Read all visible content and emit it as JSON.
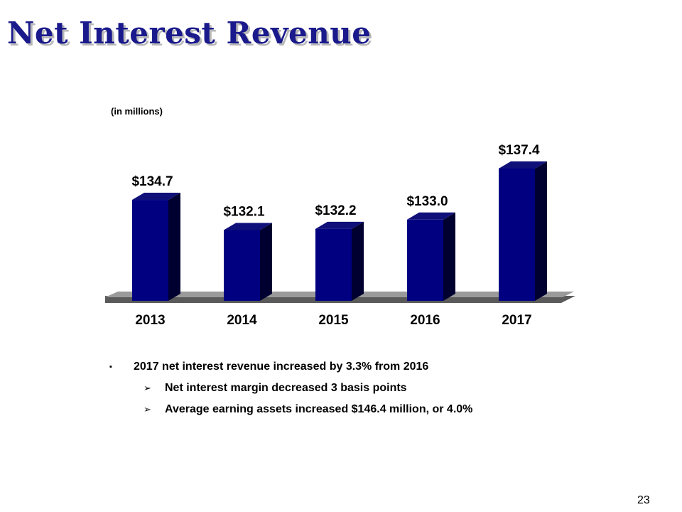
{
  "page": {
    "title": "Net Interest Revenue",
    "page_number": "23"
  },
  "chart_data": {
    "type": "bar",
    "title": "Net Interest Revenue",
    "unit_label": "(in millions)",
    "categories": [
      "2013",
      "2014",
      "2015",
      "2016",
      "2017"
    ],
    "values": [
      134.7,
      132.1,
      132.2,
      133.0,
      137.4
    ],
    "data_labels": [
      "$134.7",
      "$132.1",
      "$132.2",
      "$133.0",
      "$137.4"
    ],
    "ylim": [
      0,
      137.4
    ],
    "grid": false,
    "legend": "none",
    "colors": {
      "bar_front": "#000080",
      "bar_top": "#10107a",
      "bar_side": "#000030",
      "floor": "#9a9a9a"
    }
  },
  "bullets": {
    "main": {
      "marker": "▪",
      "text": "2017 net interest revenue increased by 3.3% from 2016"
    },
    "sub": [
      {
        "marker": "➢",
        "text": "Net interest margin decreased 3 basis points"
      },
      {
        "marker": "➢",
        "text": "Average earning assets increased $146.4 million, or 4.0%"
      }
    ]
  }
}
